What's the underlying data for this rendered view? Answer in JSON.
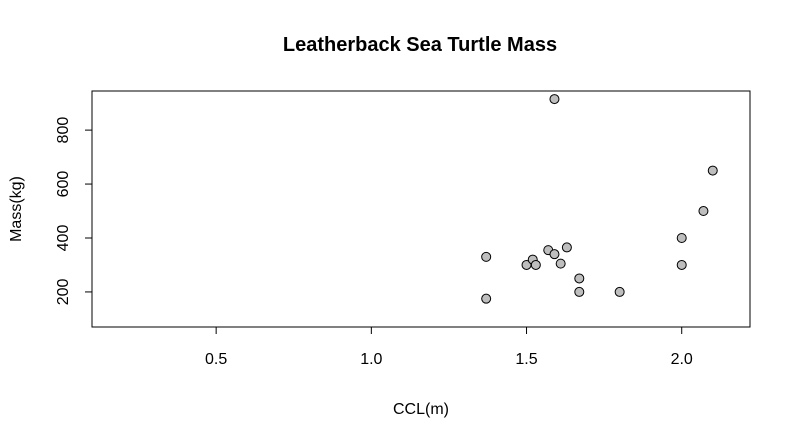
{
  "chart_data": {
    "type": "scatter",
    "title": "Leatherback Sea Turtle Mass",
    "xlabel": "CCL(m)",
    "ylabel": "Mass(kg)",
    "xlim": [
      0.1,
      2.22
    ],
    "ylim": [
      70,
      945
    ],
    "xticks": [
      0.5,
      1.0,
      1.5,
      2.0
    ],
    "xtick_labels": [
      "0.5",
      "1.0",
      "1.5",
      "2.0"
    ],
    "yticks": [
      200,
      400,
      600,
      800
    ],
    "ytick_labels": [
      "200",
      "400",
      "600",
      "800"
    ],
    "grid": false,
    "legend": "none",
    "point_color": "#bebebe",
    "x": [
      1.37,
      1.37,
      1.5,
      1.52,
      1.53,
      1.57,
      1.59,
      1.59,
      1.61,
      1.63,
      1.67,
      1.67,
      1.8,
      2.0,
      2.0,
      2.07,
      2.1
    ],
    "y": [
      175,
      330,
      300,
      320,
      300,
      355,
      915,
      340,
      305,
      365,
      250,
      200,
      200,
      300,
      400,
      500,
      650
    ]
  }
}
